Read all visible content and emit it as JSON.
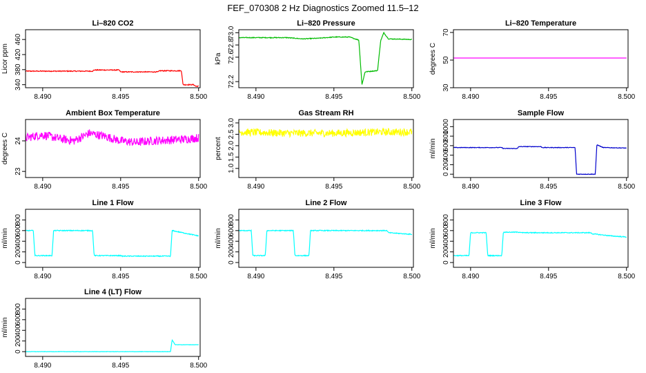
{
  "title": "FEF_070308  2 Hz Diagnostics Zoomed 11.5–12",
  "chart_data": [
    {
      "type": "line",
      "title": "Li–820 CO2",
      "ylabel": "Licor ppm",
      "xlim": [
        8.4889,
        8.5001
      ],
      "ylim": [
        332,
        486
      ],
      "yticks": [
        340,
        380,
        420,
        460
      ],
      "xticks": [
        8.49,
        8.495,
        8.5
      ],
      "xtick_labels": [
        "8.490",
        "8.495",
        "8.500"
      ],
      "color": "#ff0000",
      "noise": 1.2,
      "series": [
        {
          "x": [
            8.4889,
            8.4932,
            8.4933,
            8.4949,
            8.495,
            8.4974,
            8.4975,
            8.4989,
            8.499,
            8.4997,
            8.4998,
            8.5
          ],
          "y": [
            376,
            376,
            379,
            379,
            374,
            374,
            377,
            377,
            340,
            340,
            336,
            336
          ]
        }
      ]
    },
    {
      "type": "line",
      "title": "Li–820 Pressure",
      "ylabel": "kPa",
      "xlim": [
        8.4889,
        8.5001
      ],
      "ylim": [
        72.1,
        73.05
      ],
      "yticks": [
        72.2,
        72.6,
        72.8,
        73.0
      ],
      "xticks": [
        8.49,
        8.495,
        8.5
      ],
      "xtick_labels": [
        "8.490",
        "8.495",
        "8.500"
      ],
      "color": "#00bb00",
      "noise": 0.006,
      "series": [
        {
          "x": [
            8.4889,
            8.492,
            8.493,
            8.494,
            8.495,
            8.496,
            8.4966,
            8.4968,
            8.497,
            8.4978,
            8.498,
            8.4982,
            8.4985,
            8.5
          ],
          "y": [
            72.92,
            72.92,
            72.9,
            72.91,
            72.93,
            72.93,
            72.88,
            72.15,
            72.36,
            72.38,
            72.87,
            73.0,
            72.9,
            72.89
          ]
        }
      ]
    },
    {
      "type": "line",
      "title": "Li–820 Temperature",
      "ylabel": "degrees C",
      "xlim": [
        8.4889,
        8.5001
      ],
      "ylim": [
        30,
        72
      ],
      "yticks": [
        30,
        50,
        70
      ],
      "xticks": [
        8.49,
        8.495,
        8.5
      ],
      "xtick_labels": [
        "8.490",
        "8.495",
        "8.500"
      ],
      "color": "#ff00ff",
      "noise": 0,
      "series": [
        {
          "x": [
            8.4889,
            8.5
          ],
          "y": [
            51.5,
            51.5
          ]
        }
      ]
    },
    {
      "type": "line",
      "title": "Ambient Box Temperature",
      "ylabel": "degrees C",
      "xlim": [
        8.4889,
        8.5001
      ],
      "ylim": [
        22.8,
        24.7
      ],
      "yticks": [
        23.0,
        24.0
      ],
      "xticks": [
        8.49,
        8.495,
        8.5
      ],
      "xtick_labels": [
        "8.490",
        "8.495",
        "8.500"
      ],
      "color": "#ff00ff",
      "noise": 0.14,
      "series": [
        {
          "x": [
            8.4889,
            8.49,
            8.491,
            8.492,
            8.493,
            8.494,
            8.495,
            8.496,
            8.497,
            8.499,
            8.5
          ],
          "y": [
            24.1,
            24.2,
            24.08,
            24.0,
            24.25,
            24.15,
            24.0,
            23.95,
            24.0,
            24.05,
            24.1
          ]
        }
      ]
    },
    {
      "type": "line",
      "title": "Gas Stream RH",
      "ylabel": "percent",
      "xlim": [
        8.4889,
        8.5001
      ],
      "ylim": [
        0.6,
        3.15
      ],
      "yticks": [
        1.0,
        1.5,
        2.0,
        2.5,
        3.0
      ],
      "xticks": [
        8.49,
        8.495,
        8.5
      ],
      "xtick_labels": [
        "8.490",
        "8.495",
        "8.500"
      ],
      "color": "#ffff00",
      "noise": 0.16,
      "series": [
        {
          "x": [
            8.4889,
            8.492,
            8.495,
            8.498,
            8.5
          ],
          "y": [
            2.6,
            2.55,
            2.55,
            2.6,
            2.6
          ]
        }
      ]
    },
    {
      "type": "line",
      "title": "Sample Flow",
      "ylabel": "ml/min",
      "xlim": [
        8.4889,
        8.5001
      ],
      "ylim": [
        -70,
        1150
      ],
      "yticks": [
        0,
        200,
        400,
        600,
        800,
        1000
      ],
      "xticks": [
        8.49,
        8.495,
        8.5
      ],
      "xtick_labels": [
        "8.490",
        "8.495",
        "8.500"
      ],
      "color": "#0000cc",
      "noise": 6,
      "series": [
        {
          "x": [
            8.4889,
            8.492,
            8.4921,
            8.493,
            8.4931,
            8.4945,
            8.4946,
            8.4967,
            8.4968,
            8.498,
            8.4981,
            8.4985,
            8.5
          ],
          "y": [
            560,
            560,
            540,
            540,
            580,
            580,
            560,
            560,
            0,
            0,
            620,
            560,
            550
          ]
        }
      ]
    },
    {
      "type": "line",
      "title": "Line 1 Flow",
      "ylabel": "ml/min",
      "xlim": [
        8.4889,
        8.5001
      ],
      "ylim": [
        -90,
        1000
      ],
      "yticks": [
        0,
        200,
        400,
        600,
        800
      ],
      "xticks": [
        8.49,
        8.495,
        8.5
      ],
      "xtick_labels": [
        "8.490",
        "8.495",
        "8.500"
      ],
      "color": "#00ffff",
      "noise": 8,
      "series": [
        {
          "x": [
            8.4889,
            8.4894,
            8.4895,
            8.4906,
            8.4907,
            8.4932,
            8.4933,
            8.495,
            8.4951,
            8.4982,
            8.4983,
            8.5
          ],
          "y": [
            600,
            600,
            130,
            130,
            600,
            600,
            130,
            130,
            120,
            120,
            600,
            500
          ]
        }
      ]
    },
    {
      "type": "line",
      "title": "Line 2 Flow",
      "ylabel": "ml/min",
      "xlim": [
        8.4889,
        8.5001
      ],
      "ylim": [
        -90,
        1000
      ],
      "yticks": [
        0,
        200,
        400,
        600,
        800
      ],
      "xticks": [
        8.49,
        8.495,
        8.5
      ],
      "xtick_labels": [
        "8.490",
        "8.495",
        "8.500"
      ],
      "color": "#00ffff",
      "noise": 8,
      "series": [
        {
          "x": [
            8.4889,
            8.4897,
            8.4898,
            8.4906,
            8.4907,
            8.4924,
            8.4925,
            8.4934,
            8.4935,
            8.4984,
            8.4985,
            8.5
          ],
          "y": [
            600,
            600,
            130,
            130,
            600,
            600,
            130,
            130,
            600,
            600,
            560,
            530
          ]
        }
      ]
    },
    {
      "type": "line",
      "title": "Line 3 Flow",
      "ylabel": "ml/min",
      "xlim": [
        8.4889,
        8.5001
      ],
      "ylim": [
        -90,
        1000
      ],
      "yticks": [
        0,
        200,
        400,
        600,
        800
      ],
      "xticks": [
        8.49,
        8.495,
        8.5
      ],
      "xtick_labels": [
        "8.490",
        "8.495",
        "8.500"
      ],
      "color": "#00ffff",
      "noise": 8,
      "series": [
        {
          "x": [
            8.4889,
            8.4899,
            8.49,
            8.491,
            8.4911,
            8.492,
            8.4921,
            8.4932,
            8.4933,
            8.4977,
            8.4978,
            8.499,
            8.5
          ],
          "y": [
            130,
            130,
            560,
            560,
            130,
            130,
            570,
            570,
            560,
            560,
            540,
            500,
            480
          ]
        }
      ]
    },
    {
      "type": "line",
      "title": "Line 4 (LT) Flow",
      "ylabel": "ml/min",
      "xlim": [
        8.4889,
        8.5001
      ],
      "ylim": [
        -90,
        1000
      ],
      "yticks": [
        0,
        200,
        400,
        600,
        800
      ],
      "xticks": [
        8.49,
        8.495,
        8.5
      ],
      "xtick_labels": [
        "8.490",
        "8.495",
        "8.500"
      ],
      "color": "#00ffff",
      "noise": 3,
      "series": [
        {
          "x": [
            8.4889,
            8.4982,
            8.4983,
            8.4985,
            8.5
          ],
          "y": [
            0,
            0,
            220,
            130,
            130
          ]
        }
      ]
    }
  ]
}
